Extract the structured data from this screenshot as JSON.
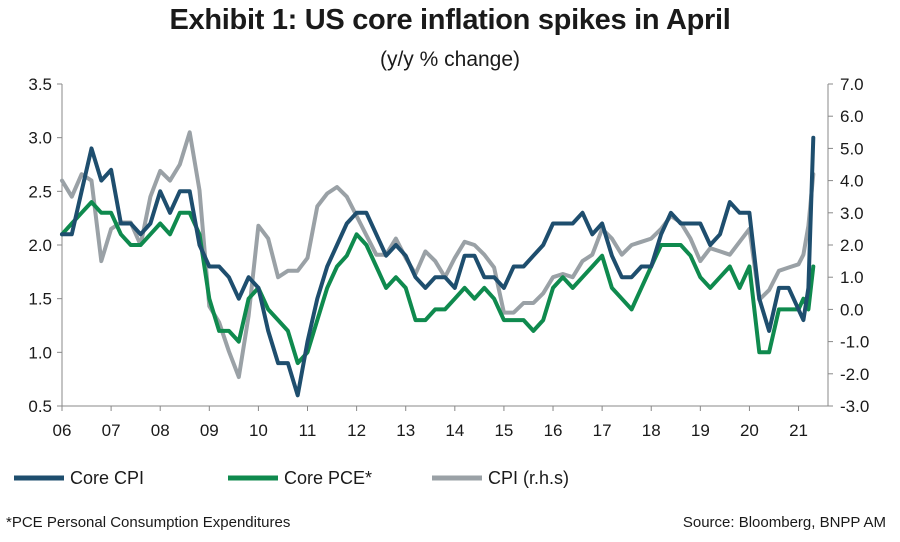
{
  "title": "Exhibit 1: US core inflation spikes in April",
  "subtitle": "(y/y % change)",
  "footnote": "*PCE  Personal Consumption Expenditures",
  "source": "Source: Bloomberg, BNPP AM",
  "colors": {
    "core_cpi": "#1e4e6e",
    "core_pce": "#0f8a4e",
    "cpi": "#9aa1a6",
    "axis": "#888888"
  },
  "chart_data": {
    "type": "line",
    "title": "Exhibit 1: US core inflation spikes in April",
    "subtitle": "(y/y % change)",
    "x_ticks": [
      "06",
      "07",
      "08",
      "09",
      "10",
      "11",
      "12",
      "13",
      "14",
      "15",
      "16",
      "17",
      "18",
      "19",
      "20",
      "21"
    ],
    "x_range": [
      2006.0,
      2021.6
    ],
    "y_left": {
      "range": [
        0.5,
        3.5
      ],
      "ticks": [
        "0.5",
        "1.0",
        "1.5",
        "2.0",
        "2.5",
        "3.0",
        "3.5"
      ]
    },
    "y_right": {
      "range": [
        -3.0,
        7.0
      ],
      "ticks": [
        "-3.0",
        "-2.0",
        "-1.0",
        "0.0",
        "1.0",
        "2.0",
        "3.0",
        "4.0",
        "5.0",
        "6.0",
        "7.0"
      ]
    },
    "legend_placement": "bottom-left",
    "series": [
      {
        "name": "Core CPI",
        "axis": "left",
        "color": "#1e4e6e",
        "points": [
          [
            2006.0,
            2.1
          ],
          [
            2006.2,
            2.1
          ],
          [
            2006.4,
            2.5
          ],
          [
            2006.6,
            2.9
          ],
          [
            2006.8,
            2.6
          ],
          [
            2007.0,
            2.7
          ],
          [
            2007.2,
            2.2
          ],
          [
            2007.4,
            2.2
          ],
          [
            2007.6,
            2.1
          ],
          [
            2007.8,
            2.2
          ],
          [
            2008.0,
            2.5
          ],
          [
            2008.2,
            2.3
          ],
          [
            2008.4,
            2.5
          ],
          [
            2008.6,
            2.5
          ],
          [
            2008.8,
            2.0
          ],
          [
            2009.0,
            1.8
          ],
          [
            2009.2,
            1.8
          ],
          [
            2009.4,
            1.7
          ],
          [
            2009.6,
            1.5
          ],
          [
            2009.8,
            1.7
          ],
          [
            2010.0,
            1.6
          ],
          [
            2010.2,
            1.2
          ],
          [
            2010.4,
            0.9
          ],
          [
            2010.6,
            0.9
          ],
          [
            2010.8,
            0.6
          ],
          [
            2011.0,
            1.1
          ],
          [
            2011.2,
            1.5
          ],
          [
            2011.4,
            1.8
          ],
          [
            2011.6,
            2.0
          ],
          [
            2011.8,
            2.2
          ],
          [
            2012.0,
            2.3
          ],
          [
            2012.2,
            2.3
          ],
          [
            2012.4,
            2.1
          ],
          [
            2012.6,
            1.9
          ],
          [
            2012.8,
            2.0
          ],
          [
            2013.0,
            1.9
          ],
          [
            2013.2,
            1.7
          ],
          [
            2013.4,
            1.6
          ],
          [
            2013.6,
            1.7
          ],
          [
            2013.8,
            1.7
          ],
          [
            2014.0,
            1.6
          ],
          [
            2014.2,
            1.9
          ],
          [
            2014.4,
            1.9
          ],
          [
            2014.6,
            1.7
          ],
          [
            2014.8,
            1.7
          ],
          [
            2015.0,
            1.6
          ],
          [
            2015.2,
            1.8
          ],
          [
            2015.4,
            1.8
          ],
          [
            2015.6,
            1.9
          ],
          [
            2015.8,
            2.0
          ],
          [
            2016.0,
            2.2
          ],
          [
            2016.2,
            2.2
          ],
          [
            2016.4,
            2.2
          ],
          [
            2016.6,
            2.3
          ],
          [
            2016.8,
            2.1
          ],
          [
            2017.0,
            2.2
          ],
          [
            2017.2,
            1.9
          ],
          [
            2017.4,
            1.7
          ],
          [
            2017.6,
            1.7
          ],
          [
            2017.8,
            1.8
          ],
          [
            2018.0,
            1.8
          ],
          [
            2018.2,
            2.1
          ],
          [
            2018.4,
            2.3
          ],
          [
            2018.6,
            2.2
          ],
          [
            2018.8,
            2.2
          ],
          [
            2019.0,
            2.2
          ],
          [
            2019.2,
            2.0
          ],
          [
            2019.4,
            2.1
          ],
          [
            2019.6,
            2.4
          ],
          [
            2019.8,
            2.3
          ],
          [
            2020.0,
            2.3
          ],
          [
            2020.2,
            1.5
          ],
          [
            2020.4,
            1.2
          ],
          [
            2020.6,
            1.6
          ],
          [
            2020.8,
            1.6
          ],
          [
            2021.0,
            1.4
          ],
          [
            2021.1,
            1.3
          ],
          [
            2021.2,
            1.6
          ],
          [
            2021.3,
            3.0
          ]
        ]
      },
      {
        "name": "Core PCE*",
        "axis": "left",
        "color": "#0f8a4e",
        "points": [
          [
            2006.0,
            2.1
          ],
          [
            2006.2,
            2.2
          ],
          [
            2006.4,
            2.3
          ],
          [
            2006.6,
            2.4
          ],
          [
            2006.8,
            2.3
          ],
          [
            2007.0,
            2.3
          ],
          [
            2007.2,
            2.1
          ],
          [
            2007.4,
            2.0
          ],
          [
            2007.6,
            2.0
          ],
          [
            2007.8,
            2.1
          ],
          [
            2008.0,
            2.2
          ],
          [
            2008.2,
            2.1
          ],
          [
            2008.4,
            2.3
          ],
          [
            2008.6,
            2.3
          ],
          [
            2008.8,
            2.1
          ],
          [
            2009.0,
            1.5
          ],
          [
            2009.2,
            1.2
          ],
          [
            2009.4,
            1.2
          ],
          [
            2009.6,
            1.1
          ],
          [
            2009.8,
            1.5
          ],
          [
            2010.0,
            1.6
          ],
          [
            2010.2,
            1.4
          ],
          [
            2010.4,
            1.3
          ],
          [
            2010.6,
            1.2
          ],
          [
            2010.8,
            0.9
          ],
          [
            2011.0,
            1.0
          ],
          [
            2011.2,
            1.3
          ],
          [
            2011.4,
            1.6
          ],
          [
            2011.6,
            1.8
          ],
          [
            2011.8,
            1.9
          ],
          [
            2012.0,
            2.1
          ],
          [
            2012.2,
            2.0
          ],
          [
            2012.4,
            1.8
          ],
          [
            2012.6,
            1.6
          ],
          [
            2012.8,
            1.7
          ],
          [
            2013.0,
            1.6
          ],
          [
            2013.2,
            1.3
          ],
          [
            2013.4,
            1.3
          ],
          [
            2013.6,
            1.4
          ],
          [
            2013.8,
            1.4
          ],
          [
            2014.0,
            1.5
          ],
          [
            2014.2,
            1.6
          ],
          [
            2014.4,
            1.5
          ],
          [
            2014.6,
            1.6
          ],
          [
            2014.8,
            1.5
          ],
          [
            2015.0,
            1.3
          ],
          [
            2015.2,
            1.3
          ],
          [
            2015.4,
            1.3
          ],
          [
            2015.6,
            1.2
          ],
          [
            2015.8,
            1.3
          ],
          [
            2016.0,
            1.6
          ],
          [
            2016.2,
            1.7
          ],
          [
            2016.4,
            1.6
          ],
          [
            2016.6,
            1.7
          ],
          [
            2016.8,
            1.8
          ],
          [
            2017.0,
            1.9
          ],
          [
            2017.2,
            1.6
          ],
          [
            2017.4,
            1.5
          ],
          [
            2017.6,
            1.4
          ],
          [
            2017.8,
            1.6
          ],
          [
            2018.0,
            1.8
          ],
          [
            2018.2,
            2.0
          ],
          [
            2018.4,
            2.0
          ],
          [
            2018.6,
            2.0
          ],
          [
            2018.8,
            1.9
          ],
          [
            2019.0,
            1.7
          ],
          [
            2019.2,
            1.6
          ],
          [
            2019.4,
            1.7
          ],
          [
            2019.6,
            1.8
          ],
          [
            2019.8,
            1.6
          ],
          [
            2020.0,
            1.8
          ],
          [
            2020.2,
            1.0
          ],
          [
            2020.4,
            1.0
          ],
          [
            2020.6,
            1.4
          ],
          [
            2020.8,
            1.4
          ],
          [
            2021.0,
            1.4
          ],
          [
            2021.1,
            1.5
          ],
          [
            2021.2,
            1.4
          ],
          [
            2021.3,
            1.8
          ]
        ]
      },
      {
        "name": "CPI (r.h.s)",
        "axis": "right",
        "color": "#9aa1a6",
        "points": [
          [
            2006.0,
            4.0
          ],
          [
            2006.2,
            3.5
          ],
          [
            2006.4,
            4.2
          ],
          [
            2006.6,
            4.0
          ],
          [
            2006.8,
            1.5
          ],
          [
            2007.0,
            2.5
          ],
          [
            2007.2,
            2.7
          ],
          [
            2007.4,
            2.7
          ],
          [
            2007.6,
            2.0
          ],
          [
            2007.8,
            3.5
          ],
          [
            2008.0,
            4.3
          ],
          [
            2008.2,
            4.0
          ],
          [
            2008.4,
            4.5
          ],
          [
            2008.6,
            5.5
          ],
          [
            2008.8,
            3.7
          ],
          [
            2009.0,
            0.1
          ],
          [
            2009.2,
            -0.4
          ],
          [
            2009.4,
            -1.3
          ],
          [
            2009.6,
            -2.1
          ],
          [
            2009.8,
            -0.2
          ],
          [
            2010.0,
            2.6
          ],
          [
            2010.2,
            2.2
          ],
          [
            2010.4,
            1.0
          ],
          [
            2010.6,
            1.2
          ],
          [
            2010.8,
            1.2
          ],
          [
            2011.0,
            1.6
          ],
          [
            2011.2,
            3.2
          ],
          [
            2011.4,
            3.6
          ],
          [
            2011.6,
            3.8
          ],
          [
            2011.8,
            3.5
          ],
          [
            2012.0,
            2.9
          ],
          [
            2012.2,
            2.3
          ],
          [
            2012.4,
            1.7
          ],
          [
            2012.6,
            1.7
          ],
          [
            2012.8,
            2.2
          ],
          [
            2013.0,
            1.6
          ],
          [
            2013.2,
            1.1
          ],
          [
            2013.4,
            1.8
          ],
          [
            2013.6,
            1.5
          ],
          [
            2013.8,
            1.0
          ],
          [
            2014.0,
            1.6
          ],
          [
            2014.2,
            2.1
          ],
          [
            2014.4,
            2.0
          ],
          [
            2014.6,
            1.7
          ],
          [
            2014.8,
            1.3
          ],
          [
            2015.0,
            -0.1
          ],
          [
            2015.2,
            -0.1
          ],
          [
            2015.4,
            0.2
          ],
          [
            2015.6,
            0.2
          ],
          [
            2015.8,
            0.5
          ],
          [
            2016.0,
            1.0
          ],
          [
            2016.2,
            1.1
          ],
          [
            2016.4,
            1.0
          ],
          [
            2016.6,
            1.5
          ],
          [
            2016.8,
            1.7
          ],
          [
            2017.0,
            2.5
          ],
          [
            2017.2,
            2.2
          ],
          [
            2017.4,
            1.7
          ],
          [
            2017.6,
            2.0
          ],
          [
            2017.8,
            2.1
          ],
          [
            2018.0,
            2.2
          ],
          [
            2018.2,
            2.5
          ],
          [
            2018.4,
            2.9
          ],
          [
            2018.6,
            2.7
          ],
          [
            2018.8,
            2.2
          ],
          [
            2019.0,
            1.5
          ],
          [
            2019.2,
            1.9
          ],
          [
            2019.4,
            1.8
          ],
          [
            2019.6,
            1.7
          ],
          [
            2019.8,
            2.1
          ],
          [
            2020.0,
            2.5
          ],
          [
            2020.2,
            0.3
          ],
          [
            2020.4,
            0.6
          ],
          [
            2020.6,
            1.2
          ],
          [
            2020.8,
            1.3
          ],
          [
            2021.0,
            1.4
          ],
          [
            2021.1,
            1.7
          ],
          [
            2021.2,
            2.6
          ],
          [
            2021.3,
            4.2
          ]
        ]
      }
    ]
  }
}
